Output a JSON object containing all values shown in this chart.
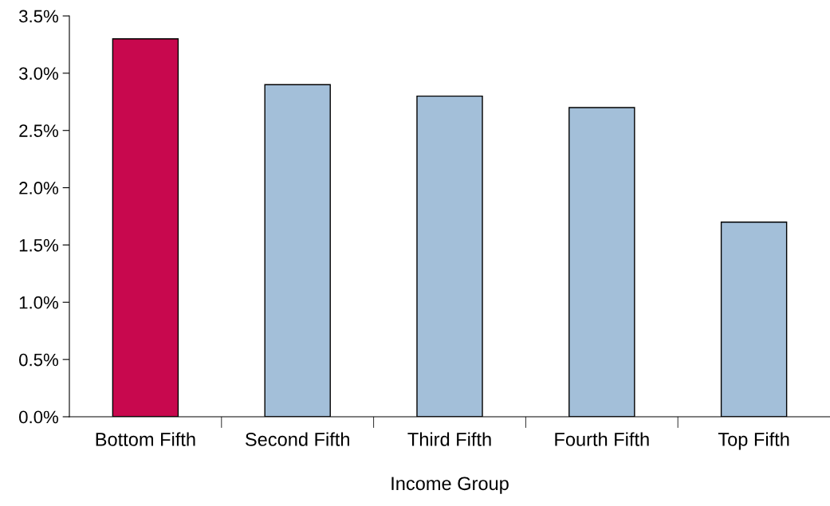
{
  "chart_data": {
    "type": "bar",
    "xlabel": "Income Group",
    "categories": [
      "Bottom Fifth",
      "Second Fifth",
      "Third Fifth",
      "Fourth Fifth",
      "Top Fifth"
    ],
    "values": [
      3.3,
      2.9,
      2.8,
      2.7,
      1.7
    ],
    "colors": [
      "#c8084e",
      "#a3bfd9",
      "#a3bfd9",
      "#a3bfd9",
      "#a3bfd9"
    ],
    "ylim": [
      0,
      3.5
    ],
    "yticks": [
      {
        "value": 0,
        "label": "0.0%"
      },
      {
        "value": 0.5,
        "label": "0.5%"
      },
      {
        "value": 1,
        "label": "1.0%"
      },
      {
        "value": 1.5,
        "label": "1.5%"
      },
      {
        "value": 2,
        "label": "2.0%"
      },
      {
        "value": 2.5,
        "label": "2.5%"
      },
      {
        "value": 3,
        "label": "3.0%"
      },
      {
        "value": 3.5,
        "label": "3.5%"
      }
    ],
    "grid": false
  }
}
